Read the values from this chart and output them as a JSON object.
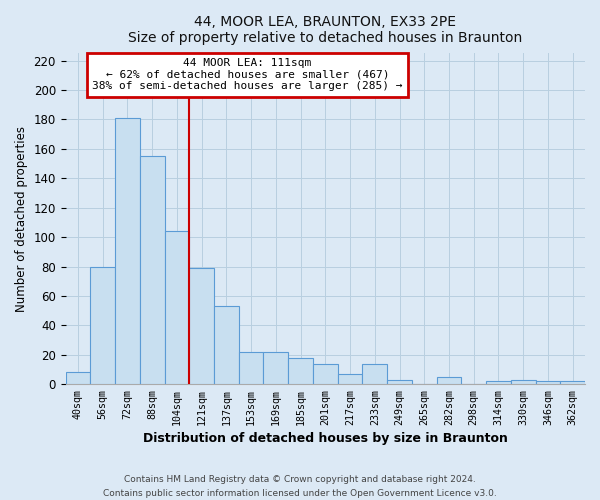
{
  "title": "44, MOOR LEA, BRAUNTON, EX33 2PE",
  "subtitle": "Size of property relative to detached houses in Braunton",
  "xlabel": "Distribution of detached houses by size in Braunton",
  "ylabel": "Number of detached properties",
  "bar_labels": [
    "40sqm",
    "56sqm",
    "72sqm",
    "88sqm",
    "104sqm",
    "121sqm",
    "137sqm",
    "153sqm",
    "169sqm",
    "185sqm",
    "201sqm",
    "217sqm",
    "233sqm",
    "249sqm",
    "265sqm",
    "282sqm",
    "298sqm",
    "314sqm",
    "330sqm",
    "346sqm",
    "362sqm"
  ],
  "bar_values": [
    8,
    80,
    181,
    155,
    104,
    79,
    53,
    22,
    22,
    18,
    14,
    7,
    14,
    3,
    0,
    5,
    0,
    2,
    3,
    2,
    2
  ],
  "bar_color": "#c8dff0",
  "bar_edge_color": "#5b9bd5",
  "figure_bg": "#dce9f5",
  "axes_bg": "#dce9f5",
  "ylim": [
    0,
    225
  ],
  "yticks": [
    0,
    20,
    40,
    60,
    80,
    100,
    120,
    140,
    160,
    180,
    200,
    220
  ],
  "property_line_x": 4.5,
  "property_label": "44 MOOR LEA: 111sqm",
  "annotation_line1": "← 62% of detached houses are smaller (467)",
  "annotation_line2": "38% of semi-detached houses are larger (285) →",
  "annotation_box_color": "#ffffff",
  "annotation_box_edge": "#cc0000",
  "line_color": "#cc0000",
  "grid_color": "#b8cfe0",
  "footer_line1": "Contains HM Land Registry data © Crown copyright and database right 2024.",
  "footer_line2": "Contains public sector information licensed under the Open Government Licence v3.0."
}
